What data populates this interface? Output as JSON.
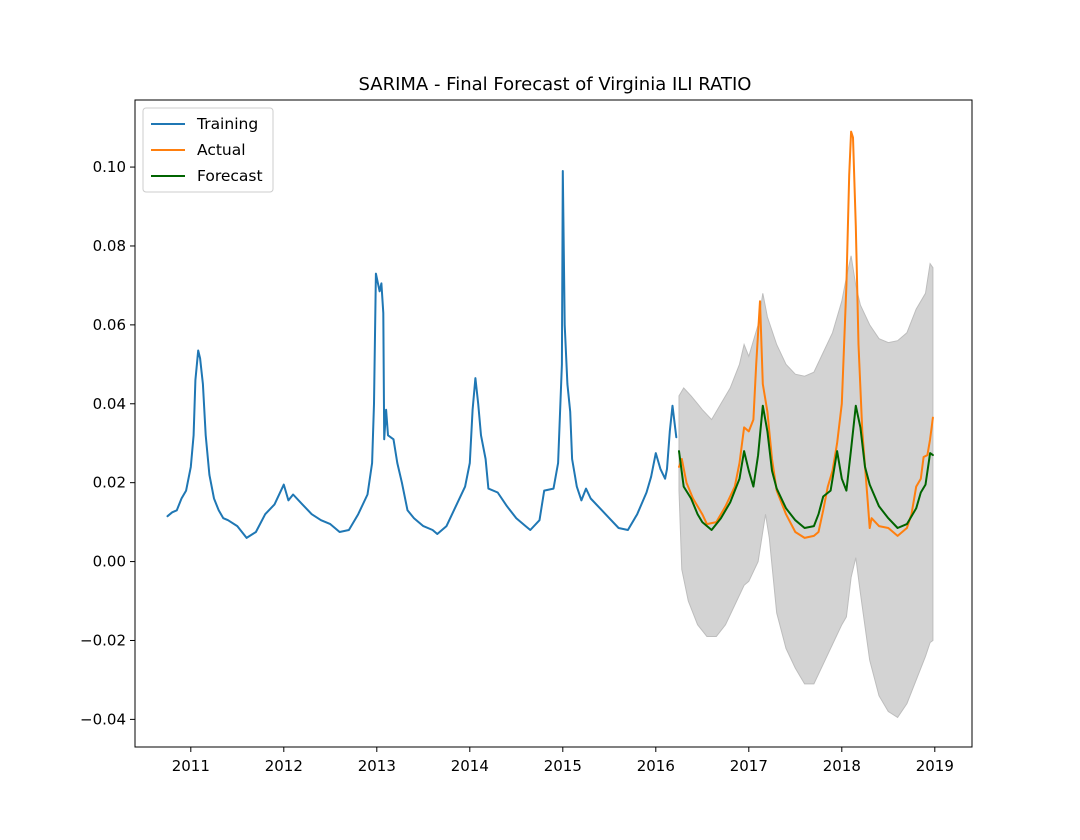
{
  "chart_data": {
    "type": "line",
    "title": "SARIMA - Final Forecast of Virginia ILI RATIO",
    "xlabel": "",
    "ylabel": "",
    "xlim": [
      2010.4,
      2019.4
    ],
    "ylim": [
      -0.047,
      0.117
    ],
    "x_ticks": [
      2011,
      2012,
      2013,
      2014,
      2015,
      2016,
      2017,
      2018,
      2019
    ],
    "x_tick_labels": [
      "2011",
      "2012",
      "2013",
      "2014",
      "2015",
      "2016",
      "2017",
      "2018",
      "2019"
    ],
    "y_ticks": [
      -0.04,
      -0.02,
      0.0,
      0.02,
      0.04,
      0.06,
      0.08,
      0.1
    ],
    "y_tick_labels": [
      "−0.04",
      "−0.02",
      "0.00",
      "0.02",
      "0.04",
      "0.06",
      "0.08",
      "0.10"
    ],
    "grid": false,
    "legend_position": "top-left",
    "series": [
      {
        "name": "Training",
        "color": "#1f77b4",
        "points": [
          [
            2010.75,
            0.0115
          ],
          [
            2010.8,
            0.0125
          ],
          [
            2010.85,
            0.013
          ],
          [
            2010.9,
            0.016
          ],
          [
            2010.95,
            0.018
          ],
          [
            2011.0,
            0.024
          ],
          [
            2011.03,
            0.032
          ],
          [
            2011.05,
            0.046
          ],
          [
            2011.08,
            0.0535
          ],
          [
            2011.1,
            0.0515
          ],
          [
            2011.13,
            0.045
          ],
          [
            2011.16,
            0.032
          ],
          [
            2011.2,
            0.022
          ],
          [
            2011.25,
            0.016
          ],
          [
            2011.3,
            0.013
          ],
          [
            2011.35,
            0.011
          ],
          [
            2011.4,
            0.0105
          ],
          [
            2011.5,
            0.009
          ],
          [
            2011.6,
            0.006
          ],
          [
            2011.7,
            0.0075
          ],
          [
            2011.8,
            0.012
          ],
          [
            2011.9,
            0.0145
          ],
          [
            2012.0,
            0.0195
          ],
          [
            2012.05,
            0.0155
          ],
          [
            2012.1,
            0.017
          ],
          [
            2012.2,
            0.0145
          ],
          [
            2012.3,
            0.012
          ],
          [
            2012.4,
            0.0105
          ],
          [
            2012.5,
            0.0095
          ],
          [
            2012.55,
            0.0085
          ],
          [
            2012.6,
            0.0075
          ],
          [
            2012.7,
            0.008
          ],
          [
            2012.8,
            0.012
          ],
          [
            2012.9,
            0.017
          ],
          [
            2012.95,
            0.025
          ],
          [
            2012.97,
            0.04
          ],
          [
            2012.99,
            0.073
          ],
          [
            2013.03,
            0.0685
          ],
          [
            2013.05,
            0.0705
          ],
          [
            2013.07,
            0.063
          ],
          [
            2013.08,
            0.031
          ],
          [
            2013.1,
            0.0385
          ],
          [
            2013.12,
            0.032
          ],
          [
            2013.18,
            0.031
          ],
          [
            2013.22,
            0.025
          ],
          [
            2013.27,
            0.02
          ],
          [
            2013.33,
            0.013
          ],
          [
            2013.4,
            0.011
          ],
          [
            2013.5,
            0.009
          ],
          [
            2013.6,
            0.008
          ],
          [
            2013.65,
            0.007
          ],
          [
            2013.75,
            0.009
          ],
          [
            2013.85,
            0.014
          ],
          [
            2013.95,
            0.019
          ],
          [
            2014.0,
            0.025
          ],
          [
            2014.03,
            0.0385
          ],
          [
            2014.06,
            0.0465
          ],
          [
            2014.09,
            0.04
          ],
          [
            2014.12,
            0.032
          ],
          [
            2014.17,
            0.026
          ],
          [
            2014.2,
            0.0185
          ],
          [
            2014.3,
            0.0175
          ],
          [
            2014.4,
            0.014
          ],
          [
            2014.5,
            0.011
          ],
          [
            2014.6,
            0.009
          ],
          [
            2014.65,
            0.008
          ],
          [
            2014.75,
            0.0105
          ],
          [
            2014.8,
            0.018
          ],
          [
            2014.9,
            0.0185
          ],
          [
            2014.95,
            0.025
          ],
          [
            2014.99,
            0.05
          ],
          [
            2015.0,
            0.099
          ],
          [
            2015.02,
            0.06
          ],
          [
            2015.05,
            0.045
          ],
          [
            2015.08,
            0.038
          ],
          [
            2015.1,
            0.026
          ],
          [
            2015.15,
            0.019
          ],
          [
            2015.2,
            0.0155
          ],
          [
            2015.25,
            0.0185
          ],
          [
            2015.3,
            0.016
          ],
          [
            2015.4,
            0.0135
          ],
          [
            2015.5,
            0.011
          ],
          [
            2015.6,
            0.0085
          ],
          [
            2015.7,
            0.008
          ],
          [
            2015.8,
            0.012
          ],
          [
            2015.9,
            0.0175
          ],
          [
            2015.95,
            0.0215
          ],
          [
            2016.0,
            0.0275
          ],
          [
            2016.05,
            0.0235
          ],
          [
            2016.1,
            0.021
          ],
          [
            2016.12,
            0.0235
          ],
          [
            2016.15,
            0.033
          ],
          [
            2016.18,
            0.0395
          ],
          [
            2016.22,
            0.0315
          ]
        ]
      },
      {
        "name": "Actual",
        "color": "#ff7f0e",
        "points": [
          [
            2016.25,
            0.024
          ],
          [
            2016.28,
            0.026
          ],
          [
            2016.33,
            0.02
          ],
          [
            2016.4,
            0.016
          ],
          [
            2016.5,
            0.012
          ],
          [
            2016.55,
            0.0095
          ],
          [
            2016.65,
            0.01
          ],
          [
            2016.75,
            0.014
          ],
          [
            2016.85,
            0.019
          ],
          [
            2016.9,
            0.025
          ],
          [
            2016.95,
            0.034
          ],
          [
            2017.0,
            0.033
          ],
          [
            2017.05,
            0.036
          ],
          [
            2017.08,
            0.05
          ],
          [
            2017.12,
            0.066
          ],
          [
            2017.15,
            0.045
          ],
          [
            2017.2,
            0.038
          ],
          [
            2017.25,
            0.026
          ],
          [
            2017.3,
            0.018
          ],
          [
            2017.4,
            0.012
          ],
          [
            2017.5,
            0.0075
          ],
          [
            2017.6,
            0.006
          ],
          [
            2017.7,
            0.0065
          ],
          [
            2017.75,
            0.0075
          ],
          [
            2017.8,
            0.013
          ],
          [
            2017.85,
            0.019
          ],
          [
            2017.9,
            0.023
          ],
          [
            2017.95,
            0.03
          ],
          [
            2018.0,
            0.04
          ],
          [
            2018.05,
            0.07
          ],
          [
            2018.08,
            0.098
          ],
          [
            2018.1,
            0.109
          ],
          [
            2018.12,
            0.1075
          ],
          [
            2018.15,
            0.085
          ],
          [
            2018.18,
            0.055
          ],
          [
            2018.22,
            0.033
          ],
          [
            2018.28,
            0.015
          ],
          [
            2018.3,
            0.0085
          ],
          [
            2018.32,
            0.011
          ],
          [
            2018.4,
            0.009
          ],
          [
            2018.5,
            0.0085
          ],
          [
            2018.6,
            0.0065
          ],
          [
            2018.7,
            0.0085
          ],
          [
            2018.75,
            0.012
          ],
          [
            2018.8,
            0.019
          ],
          [
            2018.85,
            0.021
          ],
          [
            2018.88,
            0.0265
          ],
          [
            2018.92,
            0.027
          ],
          [
            2018.95,
            0.031
          ],
          [
            2018.98,
            0.0365
          ]
        ]
      },
      {
        "name": "Forecast",
        "color": "#006400",
        "points": [
          [
            2016.25,
            0.028
          ],
          [
            2016.3,
            0.019
          ],
          [
            2016.38,
            0.016
          ],
          [
            2016.45,
            0.012
          ],
          [
            2016.5,
            0.01
          ],
          [
            2016.6,
            0.008
          ],
          [
            2016.7,
            0.011
          ],
          [
            2016.8,
            0.015
          ],
          [
            2016.9,
            0.021
          ],
          [
            2016.95,
            0.028
          ],
          [
            2017.0,
            0.023
          ],
          [
            2017.05,
            0.019
          ],
          [
            2017.1,
            0.027
          ],
          [
            2017.15,
            0.0395
          ],
          [
            2017.2,
            0.033
          ],
          [
            2017.25,
            0.023
          ],
          [
            2017.3,
            0.0185
          ],
          [
            2017.4,
            0.0135
          ],
          [
            2017.5,
            0.0105
          ],
          [
            2017.6,
            0.0085
          ],
          [
            2017.7,
            0.009
          ],
          [
            2017.75,
            0.012
          ],
          [
            2017.8,
            0.0165
          ],
          [
            2017.88,
            0.018
          ],
          [
            2017.95,
            0.028
          ],
          [
            2018.0,
            0.021
          ],
          [
            2018.05,
            0.018
          ],
          [
            2018.1,
            0.0285
          ],
          [
            2018.15,
            0.0395
          ],
          [
            2018.2,
            0.034
          ],
          [
            2018.25,
            0.024
          ],
          [
            2018.3,
            0.0195
          ],
          [
            2018.4,
            0.014
          ],
          [
            2018.5,
            0.011
          ],
          [
            2018.6,
            0.0085
          ],
          [
            2018.7,
            0.0095
          ],
          [
            2018.8,
            0.0135
          ],
          [
            2018.85,
            0.0175
          ],
          [
            2018.9,
            0.0195
          ],
          [
            2018.95,
            0.0275
          ],
          [
            2018.98,
            0.027
          ]
        ]
      }
    ],
    "confidence_band": {
      "color": "#d3d3d3",
      "upper": [
        [
          2016.25,
          0.042
        ],
        [
          2016.3,
          0.044
        ],
        [
          2016.38,
          0.042
        ],
        [
          2016.45,
          0.04
        ],
        [
          2016.5,
          0.0385
        ],
        [
          2016.6,
          0.036
        ],
        [
          2016.7,
          0.04
        ],
        [
          2016.8,
          0.044
        ],
        [
          2016.9,
          0.05
        ],
        [
          2016.95,
          0.055
        ],
        [
          2017.0,
          0.052
        ],
        [
          2017.1,
          0.06
        ],
        [
          2017.15,
          0.068
        ],
        [
          2017.2,
          0.062
        ],
        [
          2017.3,
          0.055
        ],
        [
          2017.4,
          0.05
        ],
        [
          2017.5,
          0.0475
        ],
        [
          2017.6,
          0.047
        ],
        [
          2017.7,
          0.048
        ],
        [
          2017.8,
          0.053
        ],
        [
          2017.9,
          0.058
        ],
        [
          2018.0,
          0.066
        ],
        [
          2018.05,
          0.072
        ],
        [
          2018.1,
          0.0775
        ],
        [
          2018.15,
          0.07
        ],
        [
          2018.2,
          0.065
        ],
        [
          2018.3,
          0.06
        ],
        [
          2018.4,
          0.0565
        ],
        [
          2018.5,
          0.0555
        ],
        [
          2018.6,
          0.056
        ],
        [
          2018.7,
          0.058
        ],
        [
          2018.8,
          0.064
        ],
        [
          2018.9,
          0.068
        ],
        [
          2018.95,
          0.0755
        ],
        [
          2018.98,
          0.0745
        ]
      ],
      "lower": [
        [
          2016.25,
          0.018
        ],
        [
          2016.28,
          -0.002
        ],
        [
          2016.35,
          -0.01
        ],
        [
          2016.45,
          -0.016
        ],
        [
          2016.55,
          -0.019
        ],
        [
          2016.65,
          -0.019
        ],
        [
          2016.75,
          -0.016
        ],
        [
          2016.85,
          -0.011
        ],
        [
          2016.95,
          -0.006
        ],
        [
          2017.0,
          -0.005
        ],
        [
          2017.1,
          0.0
        ],
        [
          2017.18,
          0.012
        ],
        [
          2017.22,
          0.006
        ],
        [
          2017.3,
          -0.013
        ],
        [
          2017.4,
          -0.022
        ],
        [
          2017.5,
          -0.027
        ],
        [
          2017.6,
          -0.031
        ],
        [
          2017.7,
          -0.031
        ],
        [
          2017.8,
          -0.026
        ],
        [
          2017.9,
          -0.021
        ],
        [
          2018.0,
          -0.016
        ],
        [
          2018.05,
          -0.014
        ],
        [
          2018.1,
          -0.004
        ],
        [
          2018.15,
          0.001
        ],
        [
          2018.2,
          -0.008
        ],
        [
          2018.3,
          -0.025
        ],
        [
          2018.4,
          -0.034
        ],
        [
          2018.5,
          -0.038
        ],
        [
          2018.6,
          -0.0395
        ],
        [
          2018.7,
          -0.036
        ],
        [
          2018.8,
          -0.03
        ],
        [
          2018.9,
          -0.024
        ],
        [
          2018.95,
          -0.0205
        ],
        [
          2018.98,
          -0.02
        ]
      ]
    }
  }
}
